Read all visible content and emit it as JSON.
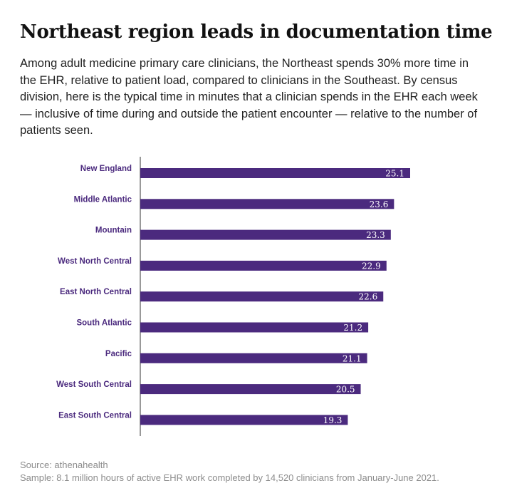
{
  "header": {
    "title": "Northeast region leads in documentation time",
    "subtitle": "Among adult medicine primary care clinicians, the Northeast spends 30% more time in the EHR, relative to patient load, compared to clinicians in the Southeast. By census division, here is the typical time in minutes that a clinician spends in the EHR each week — inclusive of time during and outside the patient encounter — relative to the number of patients seen."
  },
  "chart_data": {
    "type": "bar",
    "orientation": "horizontal",
    "categories": [
      "New England",
      "Middle Atlantic",
      "Mountain",
      "West North Central",
      "East  North Central",
      "South Atlantic",
      "Pacific",
      "West South Central",
      "East South Central"
    ],
    "values": [
      25.1,
      23.6,
      23.3,
      22.9,
      22.6,
      21.2,
      21.1,
      20.5,
      19.3
    ],
    "title": "Northeast region leads in documentation time",
    "xlabel": "",
    "ylabel": "",
    "xlim": [
      0,
      25.1
    ],
    "grid": false,
    "legend": "none",
    "data_labels": true,
    "bar_color": "#4b2a7e",
    "label_color": "#4b2a7e"
  },
  "footer": {
    "source": "Source: athenahealth",
    "sample": "Sample:  8.1 million hours of active EHR work completed by 14,520 clinicians from January-June 2021."
  }
}
